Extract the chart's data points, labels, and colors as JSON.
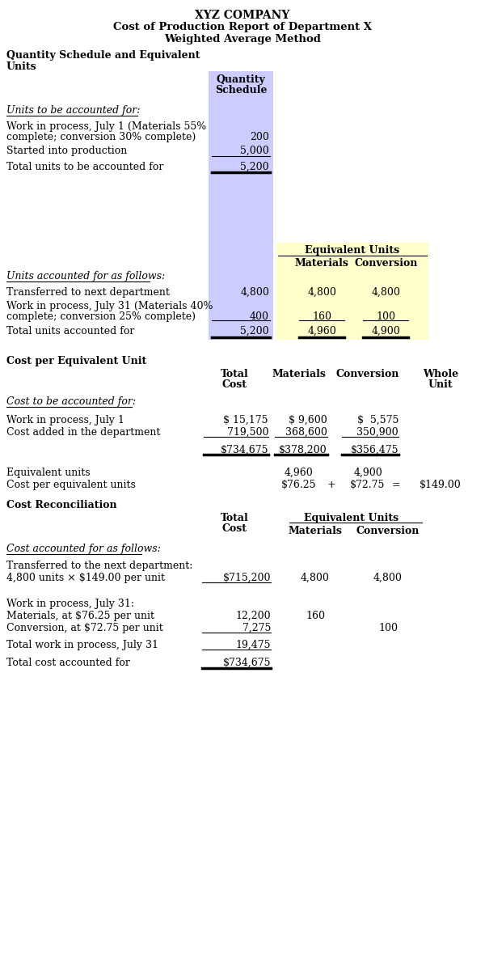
{
  "title1": "XYZ COMPANY",
  "title2": "Cost of Production Report of Department X",
  "title3": "Weighted Average Method",
  "purple_bg": "#ccccff",
  "yellow_bg": "#ffffcc",
  "fig_w": 6.0,
  "fig_h": 11.93,
  "dpi": 100
}
